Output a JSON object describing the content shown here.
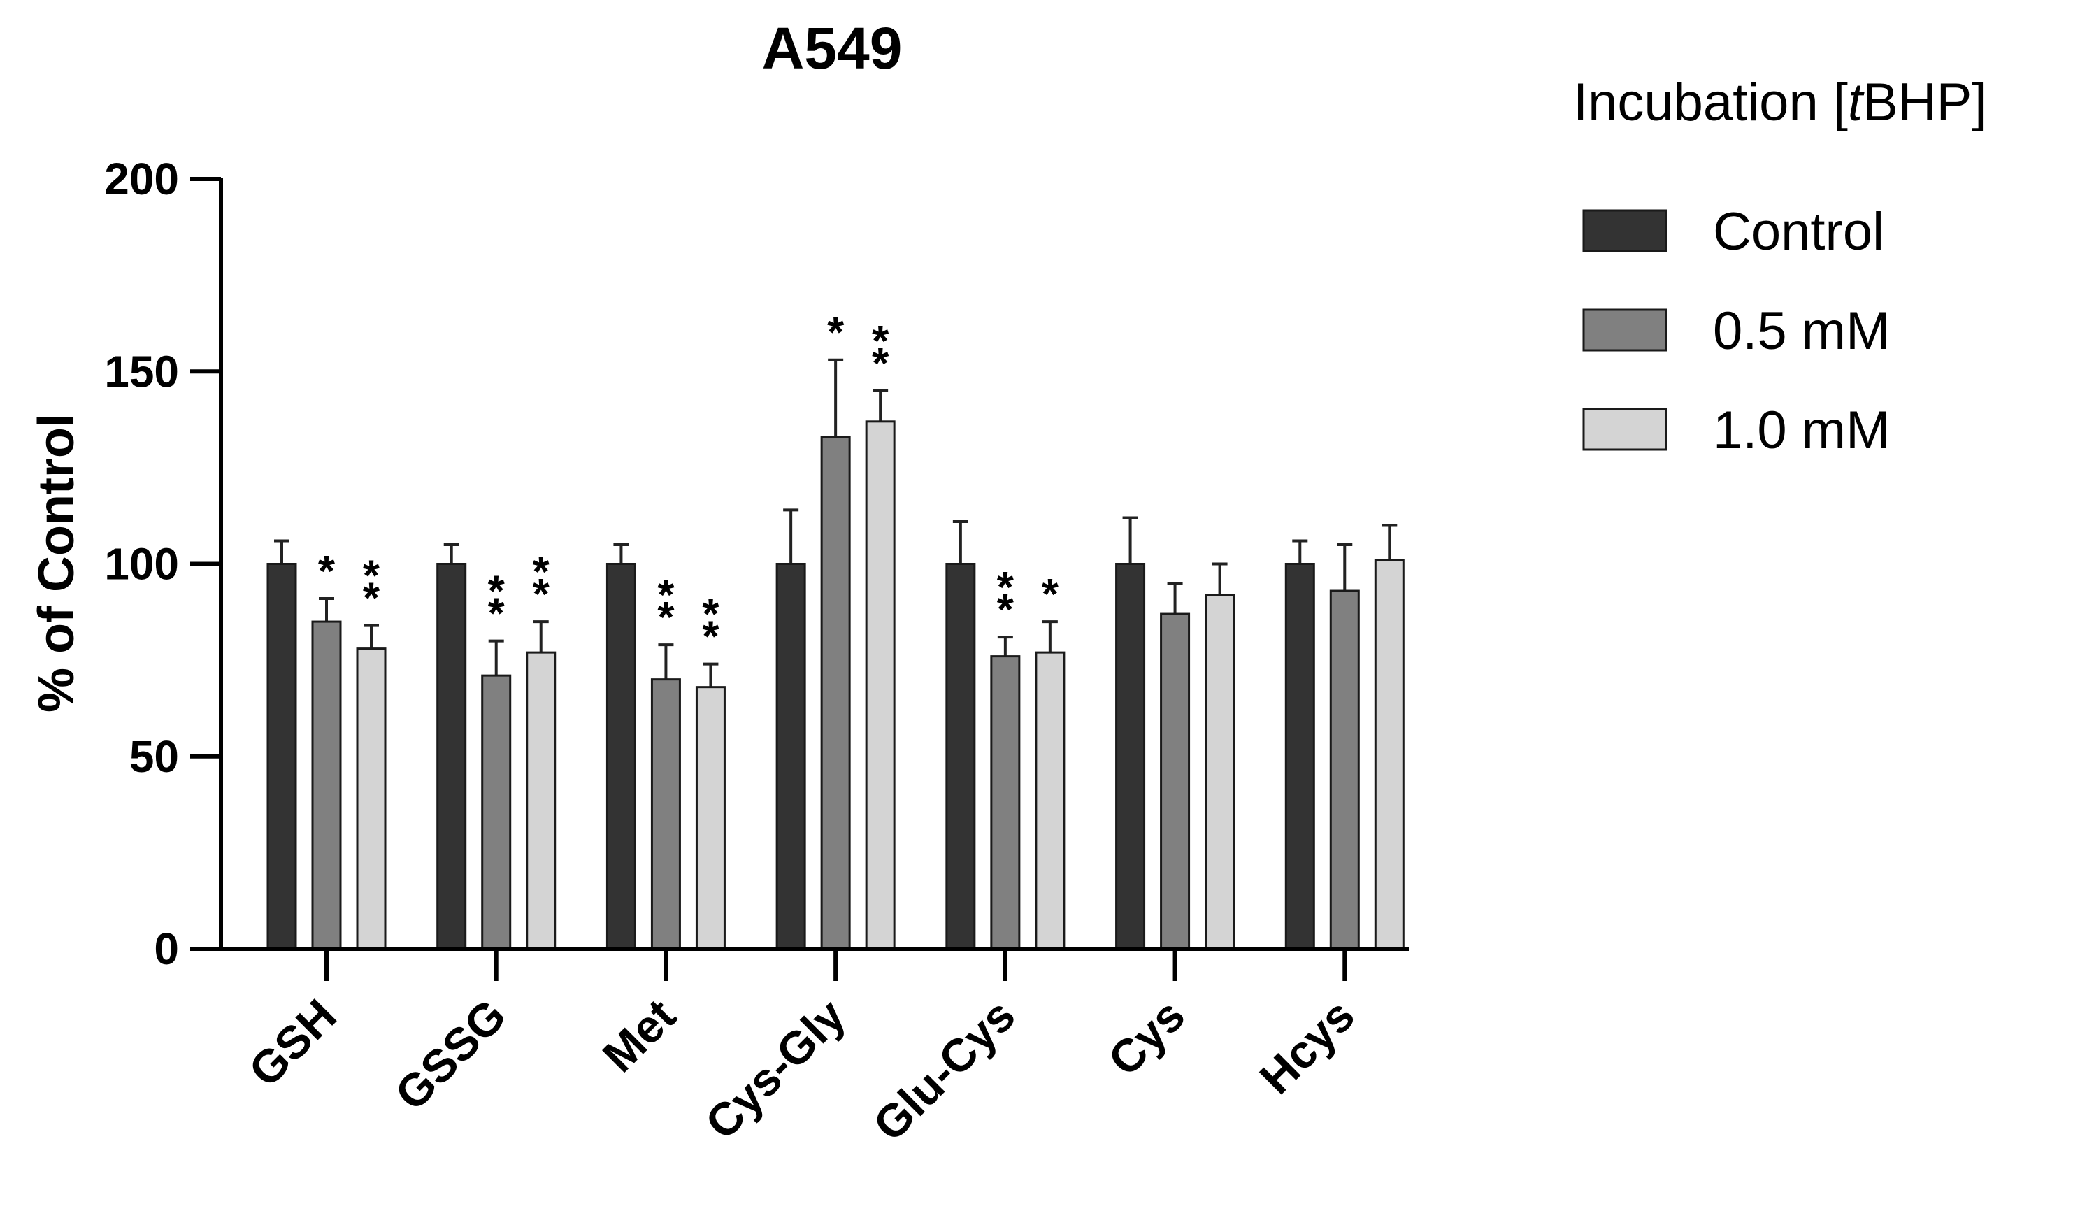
{
  "chart_data": {
    "type": "bar",
    "title": "A549",
    "xlabel": "",
    "ylabel": "% of Control",
    "ylim": [
      0,
      200
    ],
    "yticks": [
      0,
      50,
      100,
      150,
      200
    ],
    "grid": false,
    "legend_position": "top-right",
    "legend_title": {
      "prefix": "Incubation [",
      "italic": "t",
      "suffix": "BHP]"
    },
    "categories": [
      "GSH",
      "GSSG",
      "Met",
      "Cys-Gly",
      "Glu-Cys",
      "Cys",
      "Hcys"
    ],
    "series": [
      {
        "name": "Control",
        "color": "#333333",
        "values": [
          100,
          100,
          100,
          100,
          100,
          100,
          100
        ],
        "errors": [
          6,
          5,
          5,
          14,
          11,
          12,
          6
        ],
        "significance": [
          "",
          "",
          "",
          "",
          "",
          "",
          ""
        ]
      },
      {
        "name": "0.5 mM",
        "color": "#808080",
        "values": [
          85,
          71,
          70,
          133,
          76,
          87,
          93
        ],
        "errors": [
          6,
          9,
          9,
          20,
          5,
          8,
          12
        ],
        "significance": [
          "*",
          "**",
          "**",
          "*",
          "**",
          "",
          ""
        ]
      },
      {
        "name": "1.0 mM",
        "color": "#d4d4d4",
        "values": [
          78,
          77,
          68,
          137,
          77,
          92,
          101
        ],
        "errors": [
          6,
          8,
          6,
          8,
          8,
          8,
          9
        ],
        "significance": [
          "**",
          "**",
          "**",
          "**",
          "*",
          "",
          ""
        ]
      }
    ]
  }
}
